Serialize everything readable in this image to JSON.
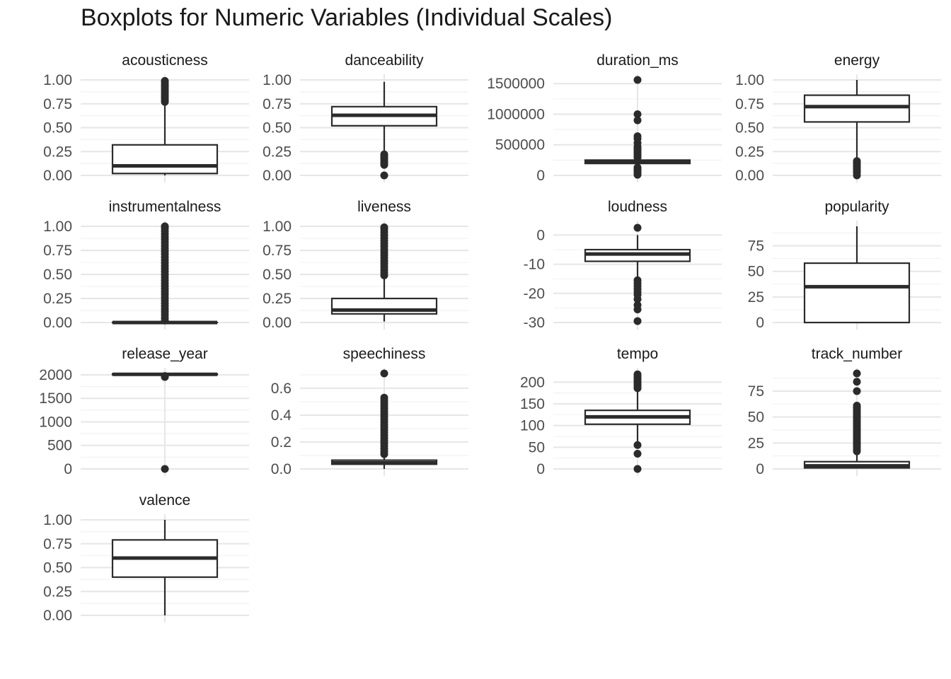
{
  "chart_data": {
    "type": "boxplot",
    "title": "Boxplots for Numeric Variables (Individual Scales)",
    "xlabel": "",
    "ylabel": "",
    "layout": "facet grid, 4 columns, individual y scales",
    "grid": true,
    "panels": [
      {
        "name": "acousticness",
        "ylim": [
          0,
          1
        ],
        "ticks": [
          "0.00",
          "0.25",
          "0.50",
          "0.75",
          "1.00"
        ],
        "tick_values": [
          0,
          0.25,
          0.5,
          0.75,
          1
        ],
        "whisker_low": 0.0,
        "q1": 0.02,
        "median": 0.1,
        "q3": 0.32,
        "whisker_high": 0.76,
        "outliers": [
          0.77,
          0.79,
          0.81,
          0.83,
          0.85,
          0.87,
          0.89,
          0.91,
          0.93,
          0.95,
          0.97,
          0.99
        ]
      },
      {
        "name": "danceability",
        "ylim": [
          0,
          1
        ],
        "ticks": [
          "0.00",
          "0.25",
          "0.50",
          "0.75",
          "1.00"
        ],
        "tick_values": [
          0,
          0.25,
          0.5,
          0.75,
          1
        ],
        "whisker_low": 0.24,
        "q1": 0.52,
        "median": 0.63,
        "q3": 0.72,
        "whisker_high": 0.98,
        "outliers": [
          0.0,
          0.11,
          0.13,
          0.15,
          0.17,
          0.19,
          0.21,
          0.22
        ]
      },
      {
        "name": "duration_ms",
        "ylim": [
          0,
          1560000
        ],
        "ticks": [
          "0",
          "500000",
          "1000000",
          "1500000"
        ],
        "tick_values": [
          0,
          500000,
          1000000,
          1500000
        ],
        "whisker_low": 185000,
        "q1": 195000,
        "median": 220000,
        "q3": 250000,
        "whisker_high": 265000,
        "outliers": [
          10000,
          40000,
          70000,
          100000,
          130000,
          290000,
          320000,
          350000,
          380000,
          410000,
          440000,
          470000,
          530000,
          600000,
          640000,
          900000,
          1000000,
          1560000
        ]
      },
      {
        "name": "energy",
        "ylim": [
          0,
          1
        ],
        "ticks": [
          "0.00",
          "0.25",
          "0.50",
          "0.75",
          "1.00"
        ],
        "tick_values": [
          0,
          0.25,
          0.5,
          0.75,
          1
        ],
        "whisker_low": 0.16,
        "q1": 0.56,
        "median": 0.72,
        "q3": 0.84,
        "whisker_high": 1.0,
        "outliers": [
          0.0,
          0.03,
          0.05,
          0.07,
          0.09,
          0.11,
          0.13,
          0.15
        ]
      },
      {
        "name": "instrumentalness",
        "ylim": [
          0,
          1
        ],
        "ticks": [
          "0.00",
          "0.25",
          "0.50",
          "0.75",
          "1.00"
        ],
        "tick_values": [
          0,
          0.25,
          0.5,
          0.75,
          1
        ],
        "whisker_low": 0.0,
        "q1": 0.0,
        "median": 0.0,
        "q3": 0.0,
        "whisker_high": 0.0,
        "outliers": [
          0.02,
          0.05,
          0.08,
          0.11,
          0.14,
          0.17,
          0.2,
          0.23,
          0.26,
          0.29,
          0.32,
          0.35,
          0.38,
          0.41,
          0.44,
          0.47,
          0.5,
          0.53,
          0.56,
          0.59,
          0.62,
          0.65,
          0.68,
          0.71,
          0.74,
          0.77,
          0.8,
          0.83,
          0.86,
          0.89,
          0.92,
          0.95,
          0.98,
          1.0
        ]
      },
      {
        "name": "liveness",
        "ylim": [
          0,
          1
        ],
        "ticks": [
          "0.00",
          "0.25",
          "0.50",
          "0.75",
          "1.00"
        ],
        "tick_values": [
          0,
          0.25,
          0.5,
          0.75,
          1
        ],
        "whisker_low": 0.01,
        "q1": 0.09,
        "median": 0.13,
        "q3": 0.25,
        "whisker_high": 0.47,
        "outliers": [
          0.49,
          0.52,
          0.55,
          0.58,
          0.61,
          0.64,
          0.67,
          0.7,
          0.73,
          0.76,
          0.79,
          0.82,
          0.85,
          0.88,
          0.91,
          0.94,
          0.97,
          0.99
        ]
      },
      {
        "name": "loudness",
        "ylim": [
          -30,
          3
        ],
        "ticks": [
          "-30",
          "-20",
          "-10",
          "0"
        ],
        "tick_values": [
          -30,
          -20,
          -10,
          0
        ],
        "whisker_low": -14.5,
        "q1": -9,
        "median": -6.5,
        "q3": -5,
        "whisker_high": 0,
        "outliers": [
          -29.5,
          -25.5,
          -24,
          -22,
          -20.5,
          -19.5,
          -18.5,
          -17.5,
          -16.5,
          -15.5,
          2.5
        ]
      },
      {
        "name": "popularity",
        "ylim": [
          0,
          94
        ],
        "ticks": [
          "0",
          "25",
          "50",
          "75"
        ],
        "tick_values": [
          0,
          25,
          50,
          75
        ],
        "whisker_low": 0,
        "q1": 0,
        "median": 35,
        "q3": 58,
        "whisker_high": 94,
        "outliers": []
      },
      {
        "name": "release_year",
        "ylim": [
          0,
          2030
        ],
        "ticks": [
          "0",
          "500",
          "1000",
          "1500",
          "2000"
        ],
        "tick_values": [
          0,
          500,
          1000,
          1500,
          2000
        ],
        "whisker_low": 1990,
        "q1": 2005,
        "median": 2012,
        "q3": 2018,
        "whisker_high": 2024,
        "outliers": [
          0,
          1955,
          1965,
          1975
        ]
      },
      {
        "name": "speechiness",
        "ylim": [
          0,
          0.71
        ],
        "ticks": [
          "0.0",
          "0.2",
          "0.4",
          "0.6"
        ],
        "tick_values": [
          0,
          0.2,
          0.4,
          0.6
        ],
        "whisker_low": 0.0,
        "q1": 0.035,
        "median": 0.045,
        "q3": 0.065,
        "whisker_high": 0.1,
        "outliers": [
          0.11,
          0.13,
          0.15,
          0.17,
          0.19,
          0.21,
          0.23,
          0.25,
          0.27,
          0.29,
          0.31,
          0.33,
          0.35,
          0.37,
          0.39,
          0.41,
          0.43,
          0.45,
          0.47,
          0.49,
          0.51,
          0.53,
          0.71
        ]
      },
      {
        "name": "tempo",
        "ylim": [
          0,
          220
        ],
        "ticks": [
          "0",
          "50",
          "100",
          "150",
          "200"
        ],
        "tick_values": [
          0,
          50,
          100,
          150,
          200
        ],
        "whisker_low": 60,
        "q1": 103,
        "median": 120,
        "q3": 135,
        "whisker_high": 182,
        "outliers": [
          0,
          35,
          55,
          186,
          190,
          194,
          198,
          202,
          206,
          210,
          214,
          218
        ]
      },
      {
        "name": "track_number",
        "ylim": [
          0,
          92
        ],
        "ticks": [
          "0",
          "25",
          "50",
          "75"
        ],
        "tick_values": [
          0,
          25,
          50,
          75
        ],
        "whisker_low": 1,
        "q1": 1,
        "median": 3,
        "q3": 7,
        "whisker_high": 15,
        "outliers": [
          17,
          19,
          21,
          23,
          25,
          27,
          29,
          31,
          33,
          35,
          37,
          39,
          41,
          43,
          45,
          47,
          49,
          51,
          53,
          55,
          57,
          59,
          61,
          75,
          84,
          92
        ]
      },
      {
        "name": "valence",
        "ylim": [
          0,
          1
        ],
        "ticks": [
          "0.00",
          "0.25",
          "0.50",
          "0.75",
          "1.00"
        ],
        "tick_values": [
          0,
          0.25,
          0.5,
          0.75,
          1
        ],
        "whisker_low": 0.0,
        "q1": 0.4,
        "median": 0.6,
        "q3": 0.79,
        "whisker_high": 1.0,
        "outliers": []
      }
    ]
  },
  "colors": {
    "box_stroke": "#2b2b2b",
    "grid_major": "#e6e6e6",
    "grid_minor": "#f2f2f2",
    "tick_text": "#4d4d4d",
    "strip_text": "#1a1a1a"
  }
}
